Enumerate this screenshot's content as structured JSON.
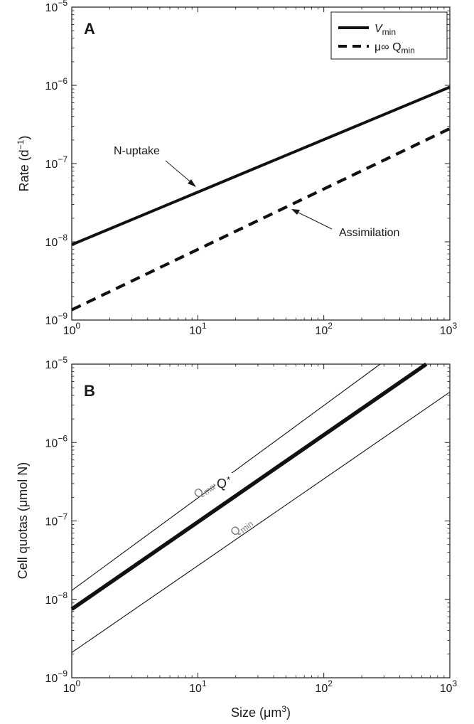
{
  "figure": {
    "panel_a": {
      "letter": "A",
      "ylabel_main": "Rate (d",
      "ylabel_sup": "−1",
      "ylabel_end": ")",
      "legend": [
        {
          "symbol": "V",
          "subscript": "min",
          "style": "solid"
        },
        {
          "symbol": "μ∞ Q",
          "subscript": "min",
          "style": "dashed"
        }
      ],
      "annotations": {
        "uptake": "N-uptake",
        "assimilation": "Assimilation"
      }
    },
    "panel_b": {
      "letter": "B",
      "ylabel": "Cell quotas (μmol N)",
      "xlabel_main": "Size (μm",
      "xlabel_sup": "3",
      "xlabel_end": ")",
      "curve_labels": {
        "qmax_main": "Q",
        "qmax_sub": "max",
        "qstar_main": "Q",
        "qstar_sup": "*",
        "qmin_main": "Q",
        "qmin_sub": "min"
      }
    }
  },
  "chart_data": [
    {
      "type": "line",
      "panel": "A",
      "xscale": "log",
      "yscale": "log",
      "xlim": [
        1,
        1000
      ],
      "ylim": [
        1e-09,
        1e-05
      ],
      "xticks": [
        1,
        10,
        100,
        1000
      ],
      "yticks": [
        1e-09,
        1e-08,
        1e-07,
        1e-06,
        1e-05
      ],
      "xtick_labels": [
        "10^0",
        "10^1",
        "10^2",
        "10^3"
      ],
      "ytick_labels": [
        "10^-9",
        "10^-8",
        "10^-7",
        "10^-6",
        "10^-5"
      ],
      "ylabel": "Rate (d⁻¹)",
      "legend_position": "top-right",
      "series": [
        {
          "name": "V_min",
          "style": "solid",
          "color": "#111111",
          "x": [
            1,
            1000
          ],
          "y": [
            9.2e-09,
            9.5e-07
          ]
        },
        {
          "name": "μ∞ Q_min",
          "style": "dashed",
          "color": "#111111",
          "x": [
            1,
            1000
          ],
          "y": [
            1.35e-09,
            2.8e-07
          ]
        }
      ],
      "annotations": [
        {
          "text": "N-uptake",
          "points_to": {
            "x": 10,
            "y": 4.5e-08
          }
        },
        {
          "text": "Assimilation",
          "points_to": {
            "x": 55,
            "y": 2.8e-08
          }
        }
      ]
    },
    {
      "type": "line",
      "panel": "B",
      "xscale": "log",
      "yscale": "log",
      "xlim": [
        1,
        1000
      ],
      "ylim": [
        1e-09,
        1e-05
      ],
      "xticks": [
        1,
        10,
        100,
        1000
      ],
      "yticks": [
        1e-09,
        1e-08,
        1e-07,
        1e-06,
        1e-05
      ],
      "xtick_labels": [
        "10^0",
        "10^1",
        "10^2",
        "10^3"
      ],
      "ytick_labels": [
        "10^-9",
        "10^-8",
        "10^-7",
        "10^-6",
        "10^-5"
      ],
      "xlabel": "Size (μm³)",
      "ylabel": "Cell quotas (μmol N)",
      "series": [
        {
          "name": "Q_max",
          "style": "thin",
          "color": "#111111",
          "x": [
            1,
            280
          ],
          "y": [
            1.3e-08,
            1e-05
          ]
        },
        {
          "name": "Q*",
          "style": "thick",
          "color": "#111111",
          "x": [
            1,
            650
          ],
          "y": [
            7.5e-09,
            1e-05
          ]
        },
        {
          "name": "Q_min",
          "style": "thin",
          "color": "#111111",
          "x": [
            1,
            1000
          ],
          "y": [
            2.1e-09,
            4.4e-06
          ]
        }
      ]
    }
  ]
}
